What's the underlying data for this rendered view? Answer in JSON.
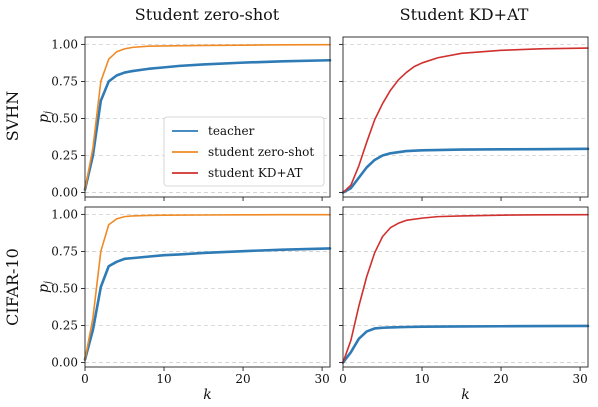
{
  "column_titles": [
    "Student zero-shot",
    "Student KD+AT"
  ],
  "row_labels": [
    "SVHN",
    "CIFAR-10"
  ],
  "colors": {
    "teacher": "#2f7bb6",
    "student_zero_shot": "#f08a24",
    "student_kdat": "#d0302e",
    "grid": "#cfcfcf"
  },
  "legend": {
    "items": [
      {
        "label": "teacher",
        "color": "#2f7bb6"
      },
      {
        "label": "student zero-shot",
        "color": "#f08a24"
      },
      {
        "label": "student KD+AT",
        "color": "#d0302e"
      }
    ]
  },
  "chart_data": [
    {
      "type": "line",
      "panel": "SVHN / Student zero-shot",
      "xlabel": "",
      "ylabel": "p_j",
      "xlim": [
        0,
        31
      ],
      "ylim": [
        -0.03,
        1.05
      ],
      "xticks": [
        0,
        10,
        20,
        30
      ],
      "yticks": [
        "0.00",
        "0.25",
        "0.50",
        "0.75",
        "1.00"
      ],
      "grid": "y-dashed",
      "legend_position": "lower-right",
      "series": [
        {
          "name": "teacher",
          "x": [
            0,
            1,
            2,
            3,
            4,
            5,
            6,
            8,
            10,
            12,
            15,
            20,
            25,
            31
          ],
          "y": [
            0.02,
            0.25,
            0.62,
            0.75,
            0.79,
            0.81,
            0.82,
            0.835,
            0.845,
            0.855,
            0.865,
            0.877,
            0.886,
            0.893
          ]
        },
        {
          "name": "student zero-shot",
          "x": [
            0,
            1,
            2,
            3,
            4,
            5,
            6,
            8,
            10,
            15,
            20,
            25,
            31
          ],
          "y": [
            0.02,
            0.3,
            0.75,
            0.9,
            0.95,
            0.97,
            0.98,
            0.988,
            0.99,
            0.993,
            0.995,
            0.997,
            0.998
          ]
        }
      ]
    },
    {
      "type": "line",
      "panel": "SVHN / Student KD+AT",
      "xlabel": "",
      "ylabel": "",
      "xlim": [
        0,
        31
      ],
      "ylim": [
        -0.03,
        1.05
      ],
      "xticks": [
        0,
        10,
        20,
        30
      ],
      "grid": "y-dashed",
      "series": [
        {
          "name": "teacher",
          "x": [
            0,
            1,
            2,
            3,
            4,
            5,
            6,
            8,
            10,
            15,
            20,
            25,
            31
          ],
          "y": [
            0.0,
            0.03,
            0.1,
            0.17,
            0.22,
            0.25,
            0.265,
            0.28,
            0.285,
            0.29,
            0.292,
            0.293,
            0.295
          ]
        },
        {
          "name": "student KD+AT",
          "x": [
            0,
            1,
            2,
            3,
            4,
            5,
            6,
            7,
            8,
            9,
            10,
            12,
            15,
            20,
            25,
            31
          ],
          "y": [
            0.0,
            0.05,
            0.18,
            0.34,
            0.49,
            0.6,
            0.69,
            0.76,
            0.81,
            0.85,
            0.875,
            0.91,
            0.94,
            0.96,
            0.97,
            0.975
          ]
        }
      ]
    },
    {
      "type": "line",
      "panel": "CIFAR-10 / Student zero-shot",
      "xlabel": "k",
      "ylabel": "p_j",
      "xlim": [
        0,
        31
      ],
      "ylim": [
        -0.03,
        1.05
      ],
      "xticks": [
        0,
        10,
        20,
        30
      ],
      "yticks": [
        "0.00",
        "0.25",
        "0.50",
        "0.75",
        "1.00"
      ],
      "grid": "y-dashed",
      "series": [
        {
          "name": "teacher",
          "x": [
            0,
            1,
            2,
            3,
            4,
            5,
            6,
            8,
            10,
            12,
            15,
            20,
            25,
            31
          ],
          "y": [
            0.02,
            0.22,
            0.51,
            0.65,
            0.68,
            0.7,
            0.705,
            0.715,
            0.725,
            0.73,
            0.74,
            0.752,
            0.762,
            0.77
          ]
        },
        {
          "name": "student zero-shot",
          "x": [
            0,
            1,
            2,
            3,
            4,
            5,
            6,
            8,
            10,
            15,
            20,
            25,
            31
          ],
          "y": [
            0.02,
            0.3,
            0.75,
            0.93,
            0.97,
            0.985,
            0.99,
            0.993,
            0.995,
            0.996,
            0.997,
            0.998,
            0.998
          ]
        }
      ]
    },
    {
      "type": "line",
      "panel": "CIFAR-10 / Student KD+AT",
      "xlabel": "k",
      "ylabel": "",
      "xlim": [
        0,
        31
      ],
      "ylim": [
        -0.03,
        1.05
      ],
      "xticks": [
        0,
        10,
        20,
        30
      ],
      "grid": "y-dashed",
      "series": [
        {
          "name": "teacher",
          "x": [
            0,
            1,
            2,
            3,
            4,
            5,
            6,
            8,
            10,
            15,
            20,
            25,
            31
          ],
          "y": [
            0.0,
            0.07,
            0.16,
            0.21,
            0.23,
            0.235,
            0.237,
            0.24,
            0.242,
            0.244,
            0.245,
            0.246,
            0.247
          ]
        },
        {
          "name": "student KD+AT",
          "x": [
            0,
            1,
            2,
            3,
            4,
            5,
            6,
            7,
            8,
            10,
            12,
            15,
            20,
            25,
            31
          ],
          "y": [
            0.0,
            0.15,
            0.38,
            0.58,
            0.74,
            0.85,
            0.91,
            0.94,
            0.96,
            0.975,
            0.985,
            0.99,
            0.995,
            0.997,
            0.998
          ]
        }
      ]
    }
  ]
}
